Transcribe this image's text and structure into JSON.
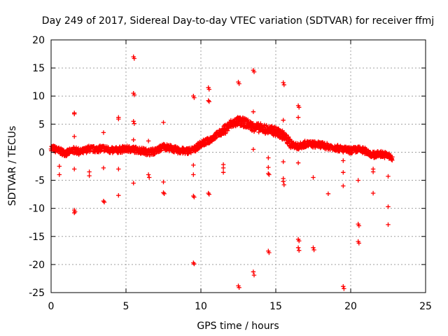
{
  "chart_data": {
    "type": "scatter",
    "title": "Day 249 of 2017, Sidereal Day-to-day VTEC variation (SDTVAR) for receiver ffmj",
    "xlabel": "GPS time / hours",
    "ylabel": "SDTVAR / TECUs",
    "xlim": [
      0,
      25
    ],
    "ylim": [
      -25,
      20
    ],
    "xticks": [
      0,
      5,
      10,
      15,
      20,
      25
    ],
    "yticks": [
      -25,
      -20,
      -15,
      -10,
      -5,
      0,
      5,
      10,
      15,
      20
    ],
    "grid": true,
    "marker": "+",
    "color": "#ff0000",
    "series": [
      {
        "name": "SDTVAR",
        "trend": [
          [
            0.0,
            0.8
          ],
          [
            0.5,
            0.3
          ],
          [
            1.0,
            -0.2
          ],
          [
            1.5,
            0.4
          ],
          [
            2.0,
            0.0
          ],
          [
            2.5,
            0.6
          ],
          [
            3.0,
            0.5
          ],
          [
            3.5,
            0.7
          ],
          [
            4.0,
            0.3
          ],
          [
            4.5,
            0.4
          ],
          [
            5.0,
            0.6
          ],
          [
            5.5,
            0.5
          ],
          [
            6.0,
            0.3
          ],
          [
            6.5,
            0.0
          ],
          [
            7.0,
            0.2
          ],
          [
            7.5,
            1.0
          ],
          [
            8.0,
            0.7
          ],
          [
            8.5,
            0.3
          ],
          [
            9.0,
            0.2
          ],
          [
            9.5,
            0.4
          ],
          [
            10.0,
            1.5
          ],
          [
            10.5,
            2.0
          ],
          [
            11.0,
            3.0
          ],
          [
            11.5,
            3.8
          ],
          [
            12.0,
            5.0
          ],
          [
            12.5,
            5.5
          ],
          [
            13.0,
            5.2
          ],
          [
            13.5,
            4.5
          ],
          [
            14.0,
            4.3
          ],
          [
            14.5,
            4.0
          ],
          [
            15.0,
            3.7
          ],
          [
            15.5,
            3.0
          ],
          [
            16.0,
            1.5
          ],
          [
            16.5,
            1.0
          ],
          [
            17.0,
            1.5
          ],
          [
            17.5,
            1.4
          ],
          [
            18.0,
            1.3
          ],
          [
            18.5,
            1.0
          ],
          [
            19.0,
            0.8
          ],
          [
            19.5,
            0.5
          ],
          [
            20.0,
            0.3
          ],
          [
            20.5,
            0.5
          ],
          [
            21.0,
            0.2
          ],
          [
            21.5,
            -0.5
          ],
          [
            22.0,
            -0.3
          ],
          [
            22.5,
            -0.6
          ],
          [
            22.8,
            -1.2
          ]
        ],
        "outliers": [
          [
            1.55,
            7.0
          ],
          [
            1.55,
            6.8
          ],
          [
            1.55,
            2.8
          ],
          [
            1.55,
            -3.0
          ],
          [
            1.55,
            -10.3
          ],
          [
            1.55,
            -10.8
          ],
          [
            1.6,
            -10.6
          ],
          [
            0.55,
            -2.5
          ],
          [
            0.55,
            -4.0
          ],
          [
            2.55,
            -3.5
          ],
          [
            2.55,
            -4.2
          ],
          [
            3.5,
            3.5
          ],
          [
            3.5,
            -2.8
          ],
          [
            3.5,
            -8.7
          ],
          [
            3.55,
            -8.9
          ],
          [
            4.5,
            6.2
          ],
          [
            4.5,
            5.9
          ],
          [
            4.5,
            -3.0
          ],
          [
            4.5,
            -7.7
          ],
          [
            5.5,
            17.0
          ],
          [
            5.55,
            16.7
          ],
          [
            5.5,
            10.5
          ],
          [
            5.55,
            10.2
          ],
          [
            5.5,
            5.5
          ],
          [
            5.55,
            5.1
          ],
          [
            5.5,
            2.2
          ],
          [
            5.5,
            -5.5
          ],
          [
            6.5,
            2.0
          ],
          [
            6.5,
            -4.0
          ],
          [
            6.55,
            -4.5
          ],
          [
            7.5,
            5.3
          ],
          [
            7.5,
            -5.3
          ],
          [
            7.5,
            -7.2
          ],
          [
            7.55,
            -7.4
          ],
          [
            9.5,
            10.0
          ],
          [
            9.55,
            9.7
          ],
          [
            9.5,
            -2.3
          ],
          [
            9.5,
            -4.0
          ],
          [
            9.5,
            -7.8
          ],
          [
            9.55,
            -8.0
          ],
          [
            9.5,
            -19.7
          ],
          [
            9.55,
            -19.9
          ],
          [
            10.5,
            11.5
          ],
          [
            10.55,
            11.2
          ],
          [
            10.5,
            9.2
          ],
          [
            10.55,
            9.0
          ],
          [
            10.5,
            -7.3
          ],
          [
            10.55,
            -7.5
          ],
          [
            11.5,
            -2.2
          ],
          [
            11.5,
            -2.8
          ],
          [
            11.5,
            -3.6
          ],
          [
            12.5,
            12.5
          ],
          [
            12.55,
            12.2
          ],
          [
            12.5,
            -23.8
          ],
          [
            12.55,
            -24.1
          ],
          [
            13.5,
            14.6
          ],
          [
            13.55,
            14.3
          ],
          [
            13.5,
            7.2
          ],
          [
            13.5,
            0.5
          ],
          [
            13.5,
            -21.3
          ],
          [
            13.55,
            -21.9
          ],
          [
            14.5,
            -1.0
          ],
          [
            14.5,
            -2.7
          ],
          [
            14.5,
            -3.8
          ],
          [
            14.55,
            -4.0
          ],
          [
            14.5,
            -17.6
          ],
          [
            14.55,
            -17.9
          ],
          [
            15.5,
            12.4
          ],
          [
            15.55,
            12.0
          ],
          [
            15.5,
            5.7
          ],
          [
            15.5,
            -1.7
          ],
          [
            15.5,
            -4.7
          ],
          [
            15.5,
            -5.2
          ],
          [
            15.55,
            -5.8
          ],
          [
            16.5,
            8.3
          ],
          [
            16.55,
            8.0
          ],
          [
            16.5,
            6.2
          ],
          [
            16.5,
            -1.9
          ],
          [
            16.5,
            -15.5
          ],
          [
            16.55,
            -15.8
          ],
          [
            16.5,
            -17.0
          ],
          [
            16.55,
            -17.5
          ],
          [
            17.5,
            -4.5
          ],
          [
            17.5,
            -17.0
          ],
          [
            17.55,
            -17.4
          ],
          [
            18.5,
            -7.4
          ],
          [
            19.5,
            -1.5
          ],
          [
            19.5,
            -3.6
          ],
          [
            19.5,
            -6.0
          ],
          [
            19.5,
            -23.9
          ],
          [
            19.55,
            -24.3
          ],
          [
            20.5,
            -5.0
          ],
          [
            20.5,
            -12.8
          ],
          [
            20.55,
            -13.1
          ],
          [
            20.5,
            -15.9
          ],
          [
            20.55,
            -16.2
          ],
          [
            21.5,
            -3.0
          ],
          [
            21.5,
            -3.5
          ],
          [
            21.5,
            -7.3
          ],
          [
            22.5,
            -4.3
          ],
          [
            22.5,
            -9.7
          ],
          [
            22.5,
            -12.9
          ]
        ]
      }
    ]
  }
}
